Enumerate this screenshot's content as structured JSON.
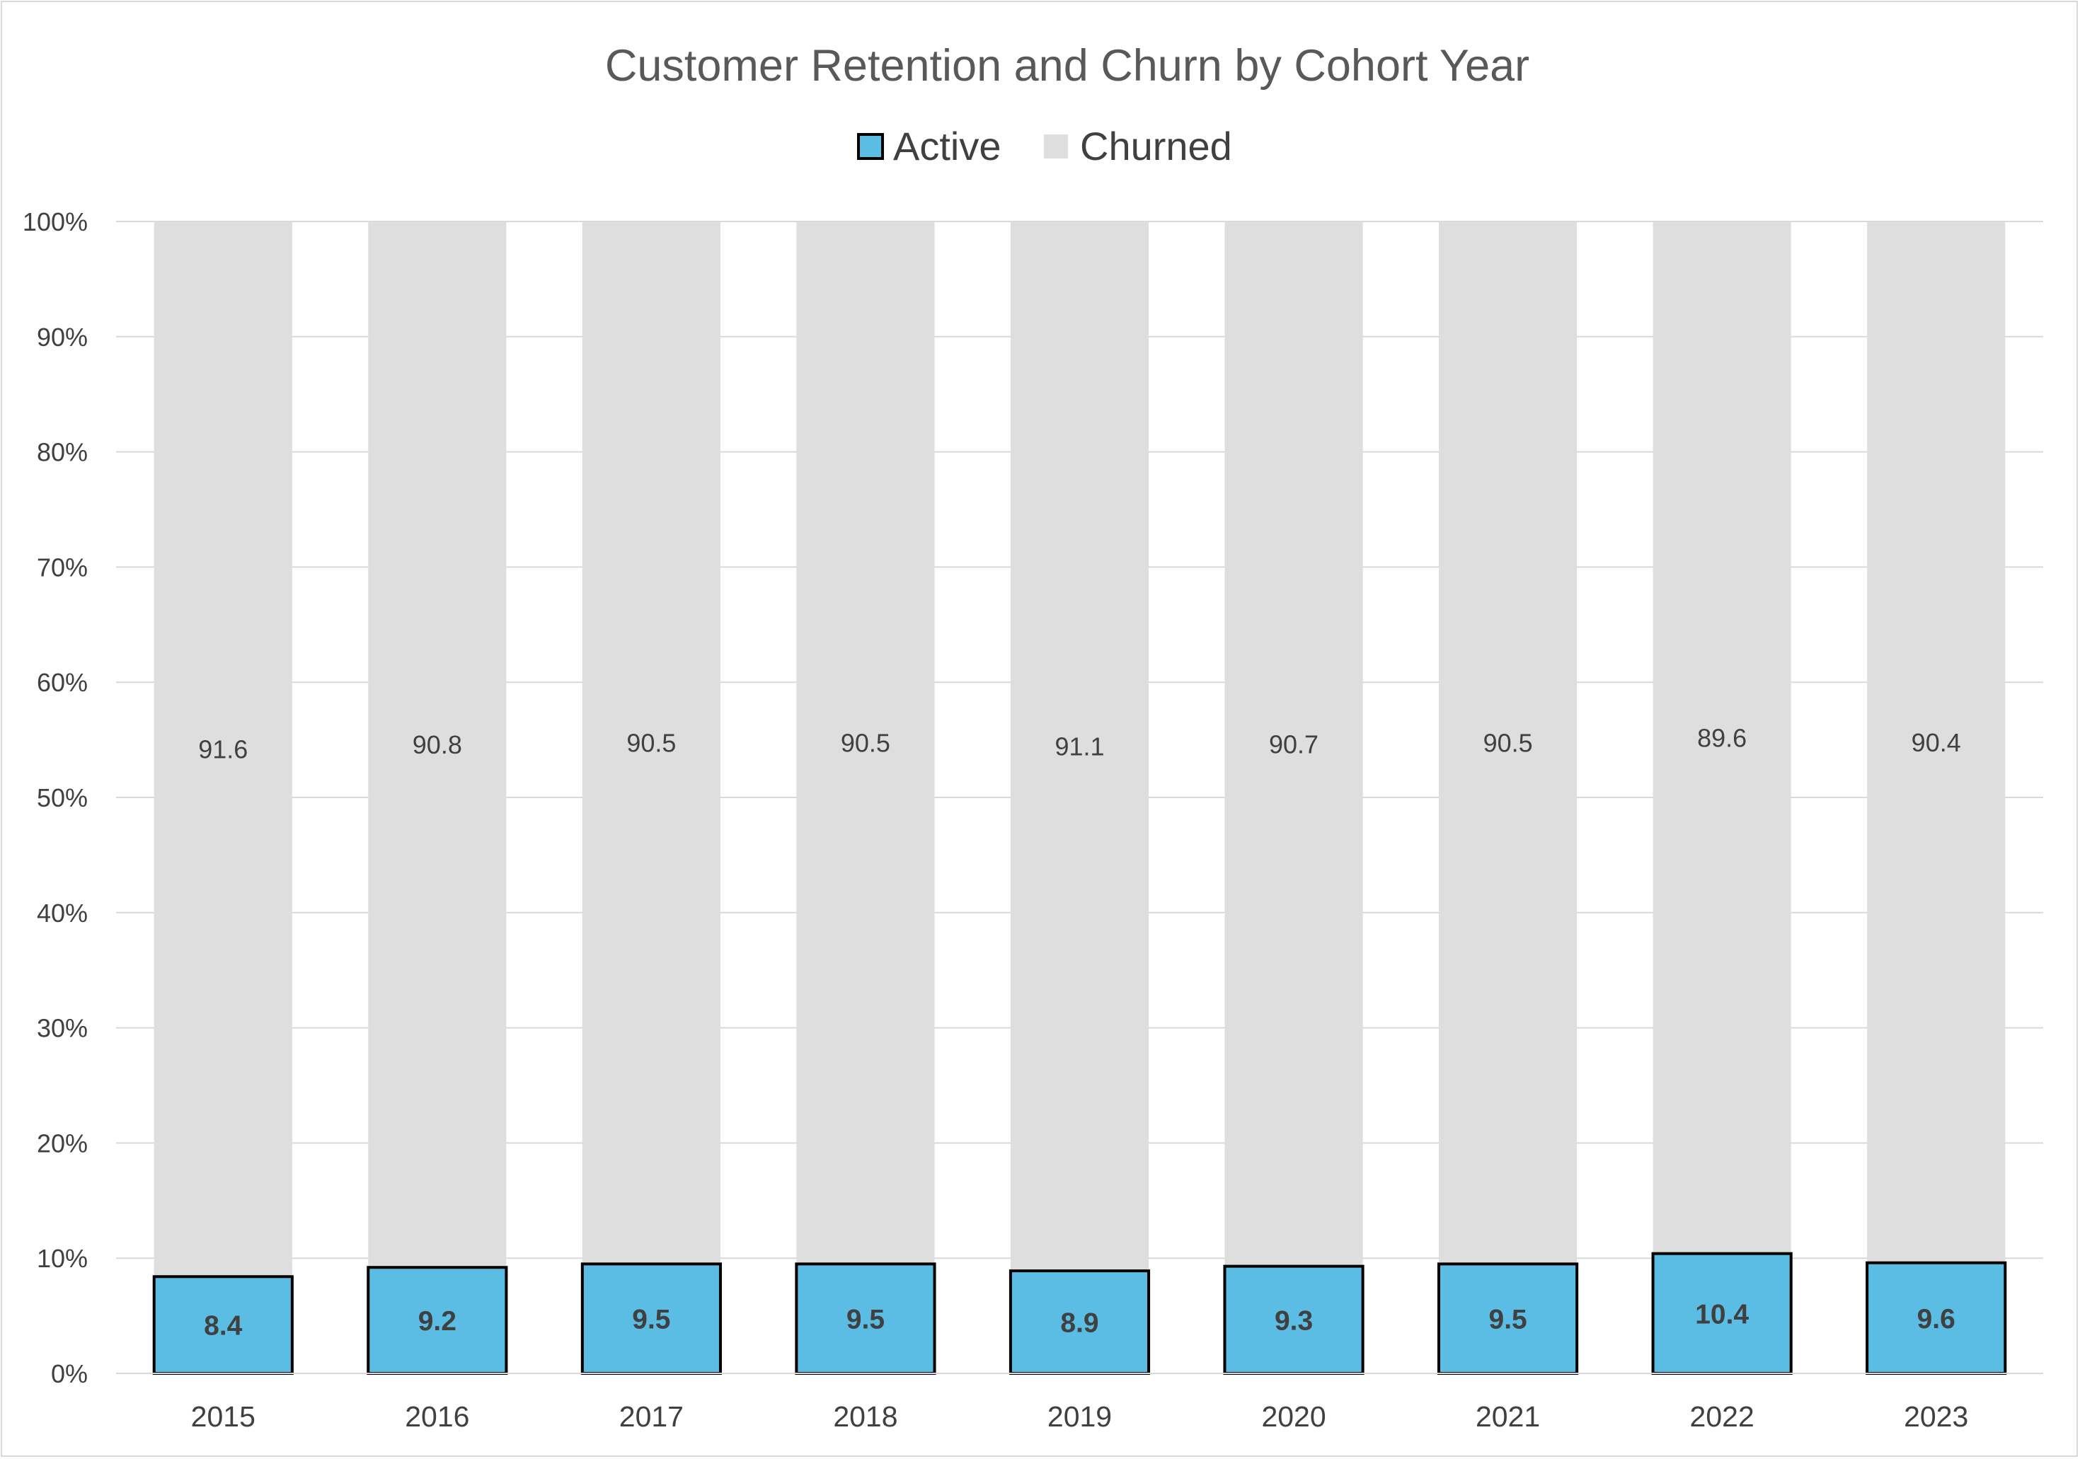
{
  "chart_data": {
    "type": "bar",
    "stacked": true,
    "percent_stacked": true,
    "title": "Customer Retention and Churn by Cohort Year",
    "xlabel": "",
    "ylabel": "",
    "categories": [
      "2015",
      "2016",
      "2017",
      "2018",
      "2019",
      "2020",
      "2021",
      "2022",
      "2023"
    ],
    "series": [
      {
        "name": "Active",
        "color": "#5bbce4",
        "outline": "#000000",
        "values": [
          8.4,
          9.2,
          9.5,
          9.5,
          8.9,
          9.3,
          9.5,
          10.4,
          9.6
        ]
      },
      {
        "name": "Churned",
        "color": "#dedede",
        "values": [
          91.6,
          90.8,
          90.5,
          90.5,
          91.1,
          90.7,
          90.5,
          89.6,
          90.4
        ]
      }
    ],
    "ylim": [
      0,
      100
    ],
    "yticks": [
      "0%",
      "10%",
      "20%",
      "30%",
      "40%",
      "50%",
      "60%",
      "70%",
      "80%",
      "90%",
      "100%"
    ],
    "grid": true,
    "legend_position": "top"
  }
}
